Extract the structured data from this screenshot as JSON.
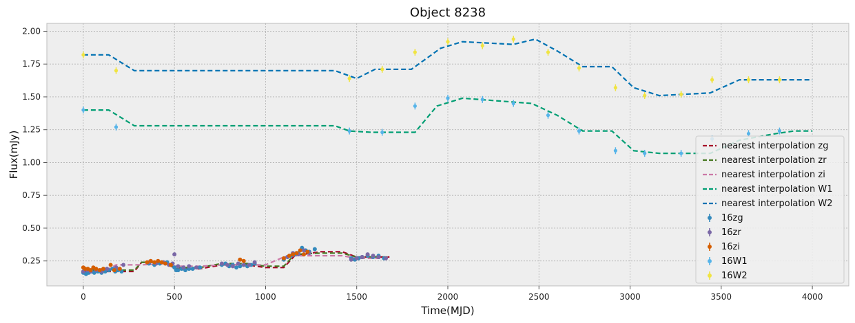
{
  "chart_data": {
    "type": "line",
    "title": "Object 8238",
    "xlabel": "Time(MJD)",
    "ylabel": "Flux(mJy)",
    "xlim": [
      -200,
      4200
    ],
    "ylim": [
      0.06,
      2.06
    ],
    "xticks": [
      0,
      500,
      1000,
      1500,
      2000,
      2500,
      3000,
      3500,
      4000
    ],
    "yticks": [
      0.25,
      0.5,
      0.75,
      1.0,
      1.25,
      1.5,
      1.75,
      2.0
    ],
    "ytick_labels": [
      "0.25",
      "0.50",
      "0.75",
      "1.00",
      "1.25",
      "1.50",
      "1.75",
      "2.00"
    ],
    "grid": true,
    "legend_position": "lower-right",
    "lines": [
      {
        "name": "nearest interpolation zg",
        "color": "#A60628",
        "x": [
          0,
          140,
          280,
          320,
          460,
          500,
          640,
          760,
          900,
          1000,
          1100,
          1160,
          1300,
          1420,
          1500,
          1680
        ],
        "y": [
          0.17,
          0.17,
          0.17,
          0.24,
          0.24,
          0.19,
          0.19,
          0.22,
          0.22,
          0.2,
          0.2,
          0.29,
          0.32,
          0.32,
          0.28,
          0.28
        ]
      },
      {
        "name": "nearest interpolation zr",
        "color": "#467821",
        "x": [
          0,
          140,
          280,
          320,
          460,
          500,
          640,
          760,
          900,
          1000,
          1100,
          1160,
          1300,
          1420,
          1500,
          1680
        ],
        "y": [
          0.18,
          0.18,
          0.18,
          0.24,
          0.24,
          0.2,
          0.2,
          0.23,
          0.23,
          0.21,
          0.21,
          0.3,
          0.31,
          0.31,
          0.28,
          0.28
        ]
      },
      {
        "name": "nearest interpolation zi",
        "color": "#D55E00",
        "dash": "9,4",
        "color_override": "#CC79A7",
        "x": [
          0,
          140,
          180,
          320,
          460,
          500,
          640,
          760,
          900,
          1000,
          1100,
          1160,
          1300,
          1420,
          1500,
          1680
        ],
        "y": [
          0.19,
          0.19,
          0.22,
          0.22,
          0.23,
          0.21,
          0.21,
          0.22,
          0.22,
          0.22,
          0.28,
          0.29,
          0.29,
          0.29,
          0.27,
          0.27
        ]
      },
      {
        "name": "nearest interpolation W1",
        "color": "#009E73",
        "x": [
          0,
          140,
          280,
          1380,
          1460,
          1580,
          1820,
          1940,
          2080,
          2460,
          2600,
          2740,
          2900,
          3020,
          3160,
          3440,
          3600,
          3800,
          3900,
          4000
        ],
        "y": [
          1.4,
          1.4,
          1.28,
          1.28,
          1.24,
          1.23,
          1.23,
          1.43,
          1.49,
          1.45,
          1.36,
          1.24,
          1.24,
          1.09,
          1.07,
          1.07,
          1.17,
          1.22,
          1.24,
          1.24
        ]
      },
      {
        "name": "nearest interpolation W2",
        "color": "#0072B2",
        "x": [
          0,
          140,
          280,
          1380,
          1500,
          1600,
          1800,
          1960,
          2080,
          2360,
          2480,
          2600,
          2740,
          2900,
          3020,
          3160,
          3440,
          3600,
          3800,
          4000
        ],
        "y": [
          1.82,
          1.82,
          1.7,
          1.7,
          1.64,
          1.71,
          1.71,
          1.87,
          1.92,
          1.9,
          1.94,
          1.85,
          1.73,
          1.73,
          1.57,
          1.51,
          1.53,
          1.63,
          1.63,
          1.63
        ]
      }
    ],
    "series": [
      {
        "name": "16zg",
        "color": "#348ABD",
        "x": [
          0,
          15,
          30,
          45,
          60,
          80,
          100,
          120,
          140,
          160,
          175,
          190,
          210,
          360,
          390,
          420,
          460,
          480,
          500,
          510,
          520,
          540,
          560,
          580,
          600,
          640,
          760,
          780,
          800,
          820,
          840,
          860,
          880,
          900,
          920,
          940,
          1100,
          1120,
          1140,
          1160,
          1180,
          1200,
          1220,
          1240,
          1270,
          1470,
          1490,
          1510,
          1530,
          1560,
          1590,
          1620,
          1650
        ],
        "y": [
          0.16,
          0.15,
          0.16,
          0.17,
          0.16,
          0.17,
          0.16,
          0.17,
          0.18,
          0.19,
          0.17,
          0.18,
          0.17,
          0.23,
          0.22,
          0.23,
          0.24,
          0.22,
          0.2,
          0.18,
          0.18,
          0.19,
          0.18,
          0.19,
          0.19,
          0.2,
          0.22,
          0.23,
          0.21,
          0.22,
          0.2,
          0.21,
          0.22,
          0.21,
          0.22,
          0.23,
          0.26,
          0.28,
          0.29,
          0.3,
          0.31,
          0.35,
          0.33,
          0.32,
          0.34,
          0.27,
          0.26,
          0.27,
          0.28,
          0.29,
          0.28,
          0.29,
          0.27
        ]
      },
      {
        "name": "16zr",
        "color": "#7A68A6",
        "x": [
          0,
          20,
          40,
          70,
          100,
          130,
          180,
          220,
          360,
          400,
          440,
          470,
          490,
          500,
          520,
          550,
          580,
          620,
          760,
          790,
          820,
          850,
          880,
          910,
          940,
          1120,
          1150,
          1180,
          1210,
          1240,
          1470,
          1500,
          1530,
          1560,
          1590,
          1620,
          1660
        ],
        "y": [
          0.17,
          0.18,
          0.17,
          0.18,
          0.17,
          0.19,
          0.2,
          0.22,
          0.24,
          0.23,
          0.24,
          0.22,
          0.23,
          0.3,
          0.21,
          0.2,
          0.21,
          0.2,
          0.23,
          0.22,
          0.21,
          0.23,
          0.22,
          0.22,
          0.24,
          0.28,
          0.31,
          0.3,
          0.33,
          0.31,
          0.26,
          0.27,
          0.28,
          0.3,
          0.29,
          0.28,
          0.27
        ]
      },
      {
        "name": "16zi",
        "color": "#D55E00",
        "x": [
          0,
          10,
          25,
          40,
          55,
          70,
          90,
          110,
          150,
          170,
          200,
          350,
          370,
          390,
          410,
          430,
          450,
          480,
          860,
          880,
          1100,
          1130,
          1150,
          1170,
          1190,
          1210,
          1230
        ],
        "y": [
          0.2,
          0.19,
          0.19,
          0.18,
          0.2,
          0.19,
          0.18,
          0.19,
          0.22,
          0.18,
          0.19,
          0.24,
          0.25,
          0.24,
          0.25,
          0.24,
          0.23,
          0.22,
          0.26,
          0.25,
          0.27,
          0.29,
          0.3,
          0.31,
          0.33,
          0.3,
          0.32
        ]
      },
      {
        "name": "16W1",
        "color": "#56B4E9",
        "x": [
          0,
          180,
          1460,
          1640,
          1820,
          2000,
          2190,
          2360,
          2550,
          2720,
          2920,
          3080,
          3280,
          3450,
          3650,
          3820
        ],
        "y": [
          1.4,
          1.27,
          1.24,
          1.23,
          1.43,
          1.49,
          1.48,
          1.45,
          1.36,
          1.24,
          1.09,
          1.07,
          1.07,
          1.18,
          1.22,
          1.24
        ]
      },
      {
        "name": "16W2",
        "color": "#F0E442",
        "x": [
          0,
          180,
          1460,
          1640,
          1820,
          2000,
          2190,
          2360,
          2550,
          2720,
          2920,
          3080,
          3280,
          3450,
          3650,
          3820
        ],
        "y": [
          1.82,
          1.7,
          1.64,
          1.71,
          1.84,
          1.92,
          1.89,
          1.94,
          1.84,
          1.72,
          1.57,
          1.51,
          1.52,
          1.63,
          1.63,
          1.63
        ]
      }
    ]
  }
}
